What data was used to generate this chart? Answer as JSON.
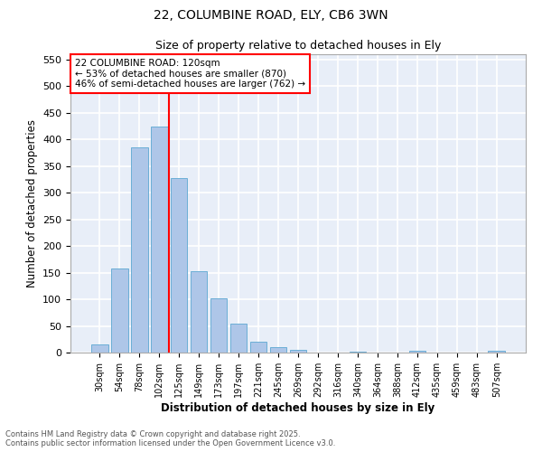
{
  "title1": "22, COLUMBINE ROAD, ELY, CB6 3WN",
  "title2": "Size of property relative to detached houses in Ely",
  "xlabel": "Distribution of detached houses by size in Ely",
  "ylabel": "Number of detached properties",
  "bar_labels": [
    "30sqm",
    "54sqm",
    "78sqm",
    "102sqm",
    "125sqm",
    "149sqm",
    "173sqm",
    "197sqm",
    "221sqm",
    "245sqm",
    "269sqm",
    "292sqm",
    "316sqm",
    "340sqm",
    "364sqm",
    "388sqm",
    "412sqm",
    "435sqm",
    "459sqm",
    "483sqm",
    "507sqm"
  ],
  "bar_values": [
    15,
    157,
    385,
    425,
    327,
    153,
    101,
    55,
    20,
    10,
    5,
    0,
    0,
    2,
    0,
    0,
    3,
    0,
    0,
    0,
    3
  ],
  "bar_color": "#aec6e8",
  "bar_edge_color": "#6baed6",
  "vline_color": "red",
  "vline_position": 3.5,
  "annotation_text": "22 COLUMBINE ROAD: 120sqm\n← 53% of detached houses are smaller (870)\n46% of semi-detached houses are larger (762) →",
  "annotation_box_color": "white",
  "annotation_box_edge": "red",
  "ylim": [
    0,
    560
  ],
  "yticks": [
    0,
    50,
    100,
    150,
    200,
    250,
    300,
    350,
    400,
    450,
    500,
    550
  ],
  "background_color": "#e8eef8",
  "grid_color": "white",
  "footer1": "Contains HM Land Registry data © Crown copyright and database right 2025.",
  "footer2": "Contains public sector information licensed under the Open Government Licence v3.0."
}
